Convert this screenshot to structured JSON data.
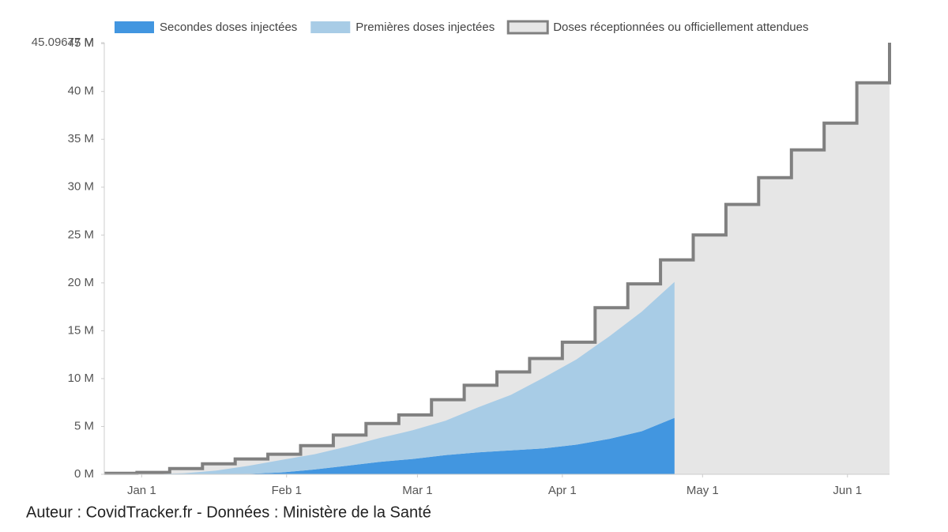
{
  "chart_data": {
    "type": "area",
    "stacked": true,
    "xlim": [
      "Dec 24",
      "Jun 10"
    ],
    "xticks": [
      "Jan 1",
      "Feb 1",
      "Mar 1",
      "Apr 1",
      "May 1",
      "Jun 1"
    ],
    "ylim": [
      0,
      45.09677
    ],
    "yticks": [
      {
        "value": 0,
        "label": "0 M"
      },
      {
        "value": 5,
        "label": "5 M"
      },
      {
        "value": 10,
        "label": "10 M"
      },
      {
        "value": 15,
        "label": "15 M"
      },
      {
        "value": 20,
        "label": "20 M"
      },
      {
        "value": 25,
        "label": "25 M"
      },
      {
        "value": 30,
        "label": "30 M"
      },
      {
        "value": 35,
        "label": "35 M"
      },
      {
        "value": 40,
        "label": "40 M"
      },
      {
        "value": 45,
        "label": "45 M"
      },
      {
        "value": 45.09677,
        "label": "45.09677 M"
      }
    ],
    "series": [
      {
        "name": "Secondes doses injectées",
        "color": "#4296e0",
        "style": "stack",
        "x": [
          "Dec 27",
          "Jan 3",
          "Jan 10",
          "Jan 17",
          "Jan 24",
          "Jan 31",
          "Feb 7",
          "Feb 14",
          "Feb 21",
          "Feb 28",
          "Mar 7",
          "Mar 14",
          "Mar 21",
          "Mar 28",
          "Apr 4",
          "Apr 11",
          "Apr 18",
          "Apr 25"
        ],
        "values": [
          0,
          0,
          0,
          0,
          0.05,
          0.2,
          0.5,
          0.9,
          1.3,
          1.6,
          2.0,
          2.3,
          2.5,
          2.7,
          3.1,
          3.7,
          4.5,
          5.9
        ]
      },
      {
        "name": "Premières doses injectées",
        "color": "#a8cce6",
        "style": "stack",
        "x": [
          "Dec 27",
          "Jan 3",
          "Jan 10",
          "Jan 17",
          "Jan 24",
          "Jan 31",
          "Feb 7",
          "Feb 14",
          "Feb 21",
          "Feb 28",
          "Mar 7",
          "Mar 14",
          "Mar 21",
          "Mar 28",
          "Apr 4",
          "Apr 11",
          "Apr 18",
          "Apr 25"
        ],
        "values": [
          0,
          0.01,
          0.1,
          0.4,
          0.85,
          1.3,
          1.6,
          2.0,
          2.5,
          3.0,
          3.6,
          4.7,
          5.8,
          7.4,
          8.9,
          10.7,
          12.5,
          14.2
        ]
      },
      {
        "name": "Doses réceptionnées ou officiellement attendues",
        "color": "#e6e6e6",
        "stroke": "#808080",
        "style": "step",
        "x": [
          "Dec 24",
          "Dec 31",
          "Jan 7",
          "Jan 14",
          "Jan 21",
          "Jan 28",
          "Feb 4",
          "Feb 11",
          "Feb 18",
          "Feb 25",
          "Mar 4",
          "Mar 11",
          "Mar 18",
          "Mar 25",
          "Apr 1",
          "Apr 8",
          "Apr 15",
          "Apr 22",
          "Apr 29",
          "May 6",
          "May 13",
          "May 20",
          "May 27",
          "Jun 3",
          "Jun 10"
        ],
        "values": [
          0.1,
          0.2,
          0.6,
          1.1,
          1.6,
          2.1,
          3.0,
          4.1,
          5.3,
          6.2,
          7.8,
          9.3,
          10.7,
          12.1,
          13.8,
          17.4,
          19.9,
          22.4,
          25.0,
          28.2,
          31.0,
          33.9,
          36.7,
          40.9,
          45.09677
        ]
      }
    ],
    "footer": "Auteur : CovidTracker.fr - Données : Ministère de la Santé"
  }
}
